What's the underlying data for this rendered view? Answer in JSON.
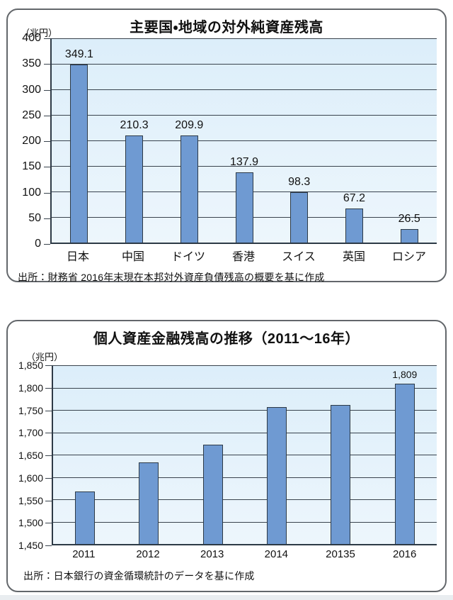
{
  "chart_data": [
    {
      "type": "bar",
      "title": "主要国・地域の対外純資産残高",
      "unit_label": "（兆円）",
      "xlabel": "",
      "ylabel": "兆円",
      "ylim": [
        0,
        400
      ],
      "y_tick_step": 50,
      "y_ticks": [
        "400",
        "350",
        "300",
        "250",
        "200",
        "150",
        "100",
        "50",
        "0"
      ],
      "grid": true,
      "legend": "none",
      "categories": [
        "日本",
        "中国",
        "ドイツ",
        "香港",
        "スイス",
        "英国",
        "ロシア"
      ],
      "values": [
        349.1,
        210.3,
        209.9,
        137.9,
        98.3,
        67.2,
        26.5
      ],
      "bar_labels": [
        "349.1",
        "210.3",
        "209.9",
        "137.9",
        "98.3",
        "67.2",
        "26.5"
      ],
      "source": "出所：財務省 2016年末現在本邦対外資産負債残高の概要を基に作成",
      "colors": {
        "bar_fill": "#6f9ad2",
        "bar_border": "#2d3a46",
        "grid": "#39434d",
        "plot_bg_top": "#dceefa",
        "plot_bg_bottom": "#edf6fc"
      }
    },
    {
      "type": "bar",
      "title": "個人資産金融残高の推移（2011〜16年）",
      "unit_label": "（兆円）",
      "xlabel": "",
      "ylabel": "兆円",
      "ylim": [
        1450,
        1850
      ],
      "y_tick_step": 50,
      "y_ticks": [
        "1,850",
        "1,800",
        "1,750",
        "1,700",
        "1,650",
        "1,600",
        "1,550",
        "1,500",
        "1,450"
      ],
      "grid": true,
      "legend": "none",
      "categories": [
        "2011",
        "2012",
        "2013",
        "2014",
        "20135",
        "2016"
      ],
      "values": [
        1567,
        1632,
        1673,
        1756,
        1761,
        1809
      ],
      "bar_labels": [
        null,
        null,
        null,
        null,
        null,
        "1,809"
      ],
      "source": "出所：日本銀行の資金循環統計のデータを基に作成",
      "colors": {
        "bar_fill": "#6f9ad2",
        "bar_border": "#2d3a46",
        "grid": "#39434d",
        "plot_bg_top": "#dceefa",
        "plot_bg_bottom": "#edf6fc"
      }
    }
  ]
}
